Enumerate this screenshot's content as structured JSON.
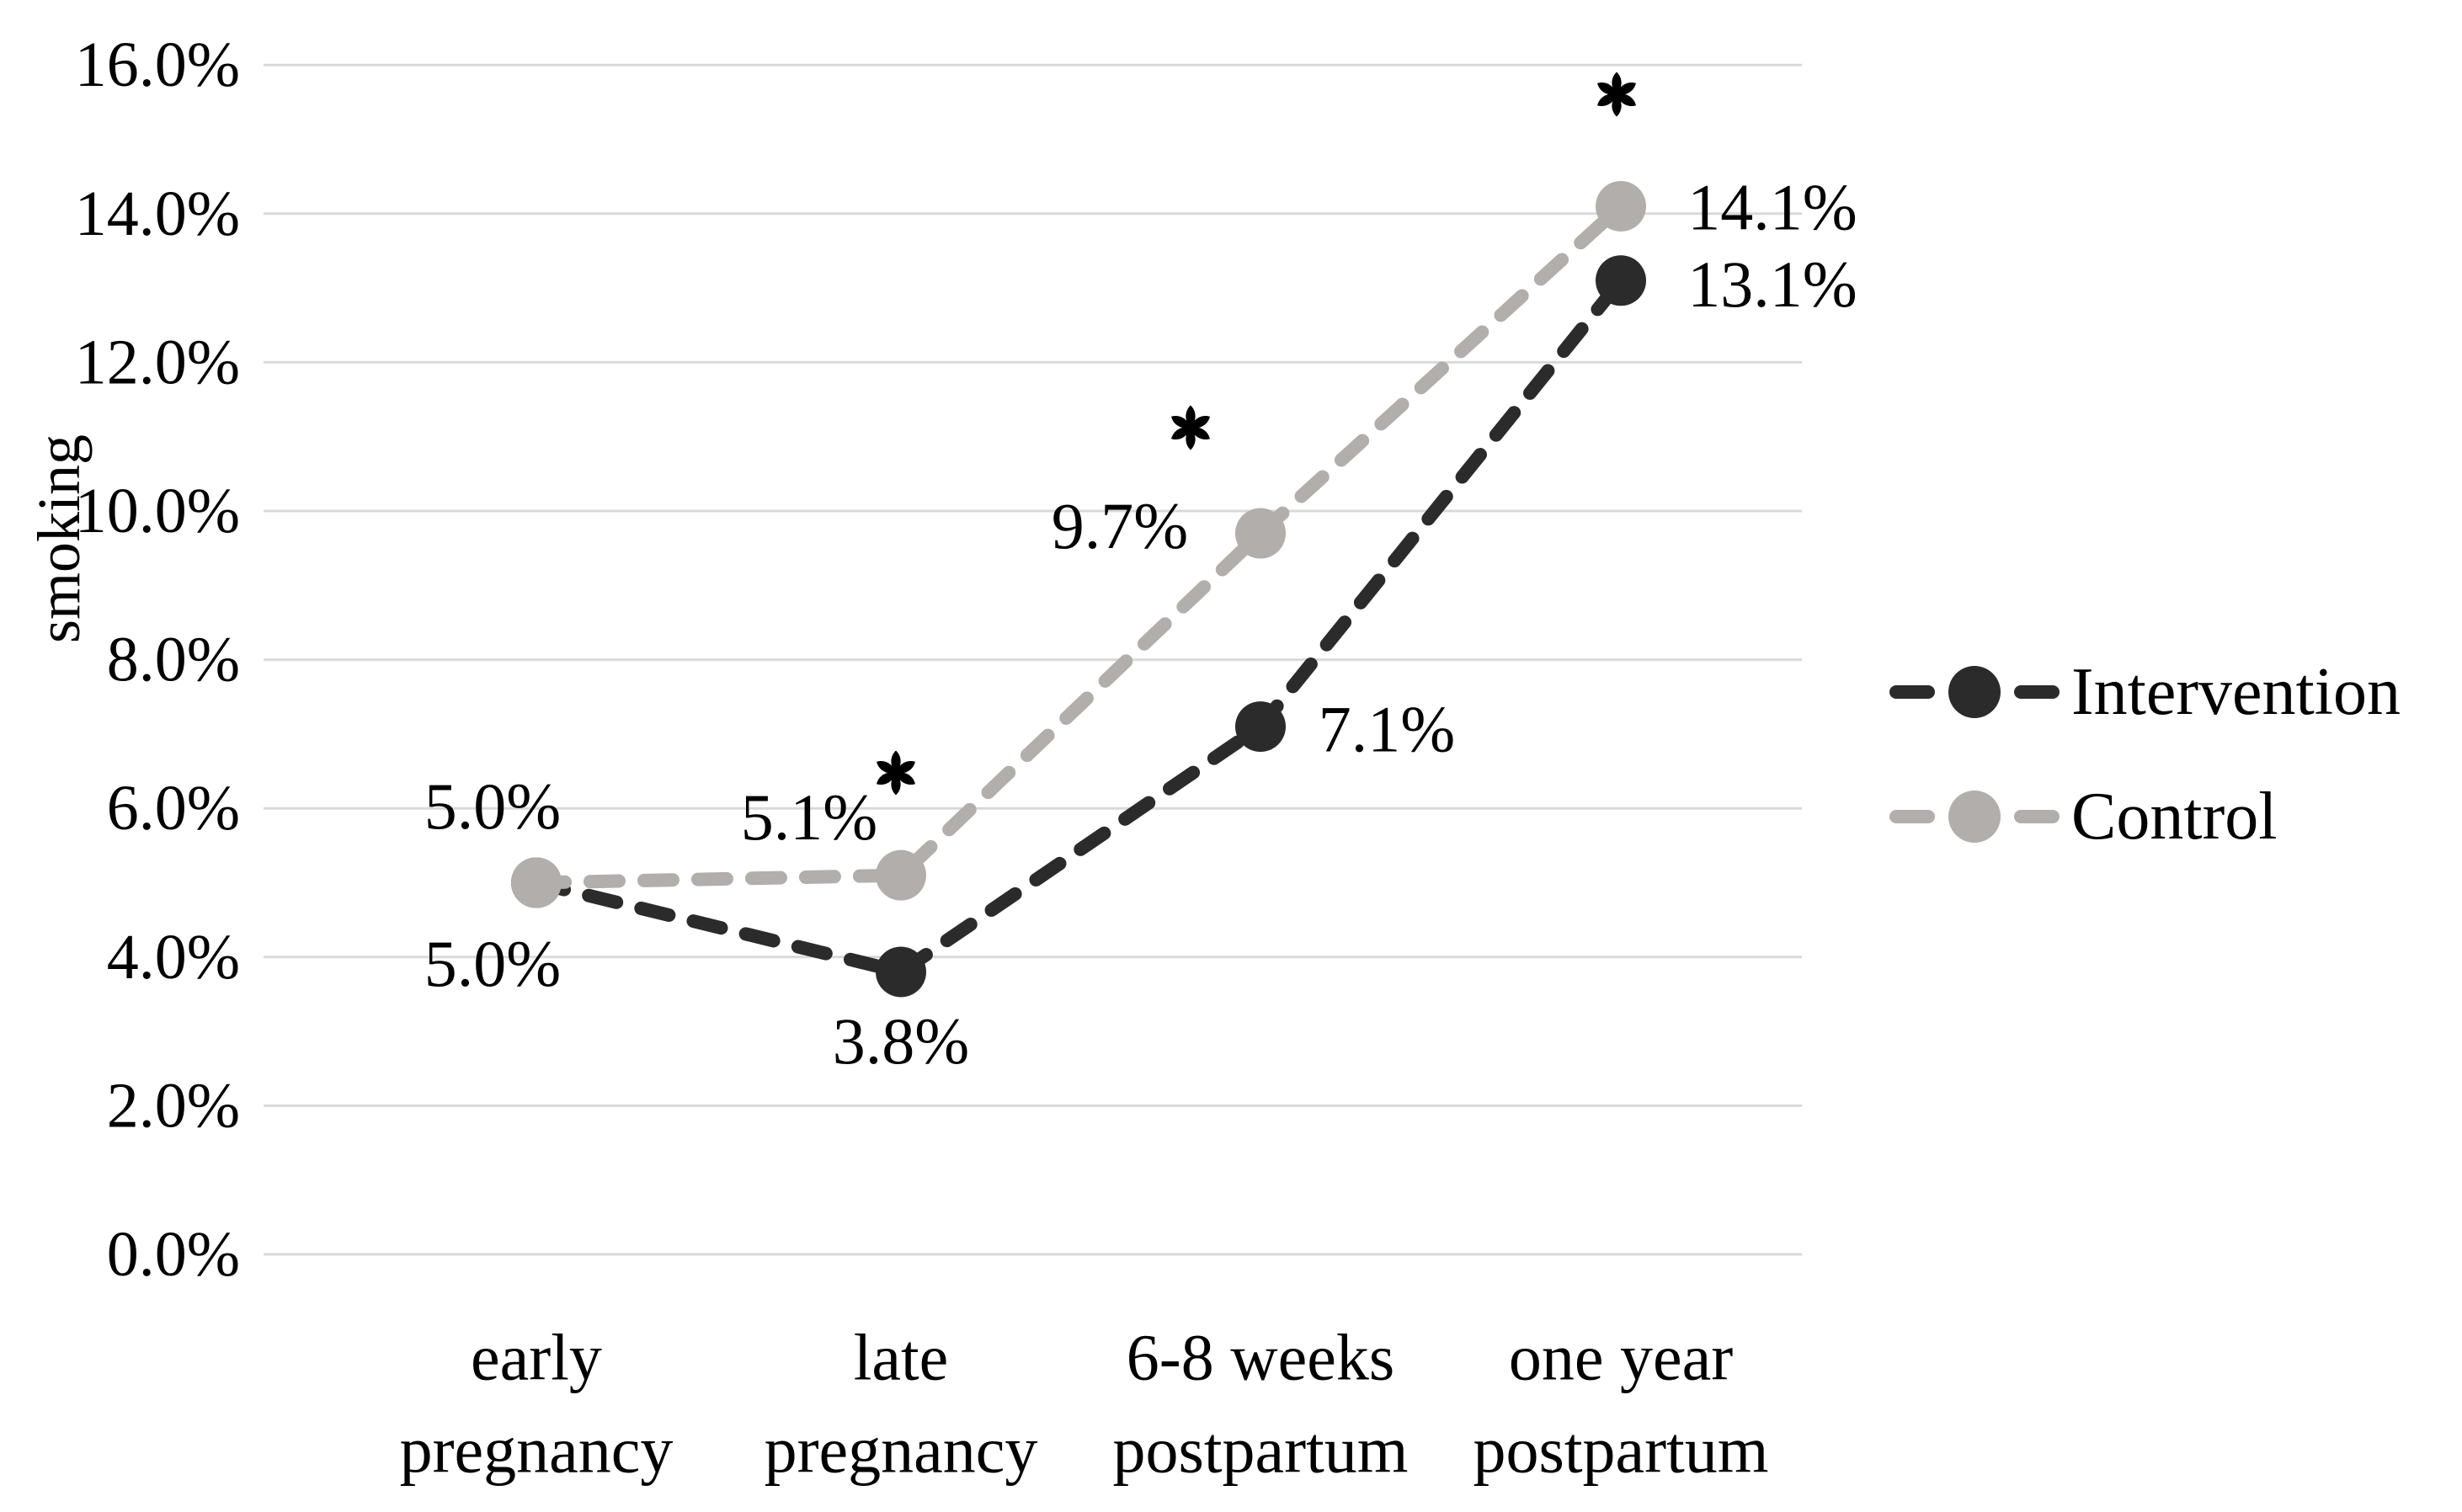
{
  "figure": {
    "description": "Line chart of smoking prevalence over pregnancy and postpartum time points for intervention vs control groups"
  },
  "chart_data": {
    "type": "line",
    "title": "",
    "xlabel": "",
    "ylabel": "smoking",
    "grid": true,
    "legend_position": "right",
    "categories": [
      [
        "early",
        "pregnancy"
      ],
      [
        "late",
        "pregnancy"
      ],
      [
        "6-8 weeks",
        "postpartum"
      ],
      [
        "one year",
        "postpartum"
      ]
    ],
    "y_axis": {
      "min": 0,
      "max": 16,
      "step": 2,
      "tick_labels": [
        "0.0%",
        "2.0%",
        "4.0%",
        "6.0%",
        "8.0%",
        "10.0%",
        "12.0%",
        "14.0%",
        "16.0%"
      ]
    },
    "series": [
      {
        "name": "Intervention",
        "color": "#2b2b2b",
        "line_style": "dashed",
        "marker": "circle",
        "values": [
          5.0,
          3.8,
          7.1,
          13.1
        ],
        "labels": [
          "5.0%",
          "3.8%",
          "7.1%",
          "13.1%"
        ]
      },
      {
        "name": "Control",
        "color": "#b1aeab",
        "line_style": "dashed",
        "marker": "circle",
        "values": [
          5.0,
          5.1,
          9.7,
          14.1
        ],
        "labels": [
          "5.0%",
          "5.1%",
          "9.7%",
          "14.1%"
        ]
      }
    ],
    "annotations": [
      {
        "text": "*",
        "category_index": 1
      },
      {
        "text": "*",
        "category_index": 2
      },
      {
        "text": "*",
        "category_index": 3
      }
    ]
  },
  "colors": {
    "gridline": "#d9d9d9",
    "text": "#000000",
    "background": "#ffffff"
  }
}
